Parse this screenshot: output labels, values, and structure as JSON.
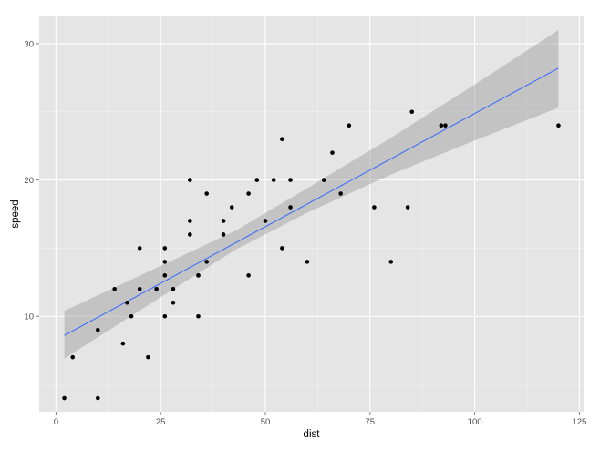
{
  "chart_data": {
    "type": "scatter",
    "xlabel": "dist",
    "ylabel": "speed",
    "xlim": [
      -4,
      126
    ],
    "ylim": [
      3,
      32
    ],
    "x_ticks": [
      0,
      25,
      50,
      75,
      100,
      125
    ],
    "y_ticks": [
      10,
      20,
      30
    ],
    "x_minor_ticks": [
      12.5,
      37.5,
      62.5,
      87.5,
      112.5
    ],
    "y_minor_ticks": [
      5,
      15,
      25
    ],
    "grid": true,
    "legend": "none",
    "colors": {
      "panel": "#e5e5e5",
      "grid": "#ffffff",
      "points": "#000000",
      "fit_line": "#3366ff",
      "confidence_band": "#999999"
    },
    "points": [
      {
        "x": 2,
        "y": 4
      },
      {
        "x": 10,
        "y": 4
      },
      {
        "x": 4,
        "y": 7
      },
      {
        "x": 22,
        "y": 7
      },
      {
        "x": 16,
        "y": 8
      },
      {
        "x": 10,
        "y": 9
      },
      {
        "x": 18,
        "y": 10
      },
      {
        "x": 26,
        "y": 10
      },
      {
        "x": 34,
        "y": 10
      },
      {
        "x": 17,
        "y": 11
      },
      {
        "x": 28,
        "y": 11
      },
      {
        "x": 14,
        "y": 12
      },
      {
        "x": 20,
        "y": 12
      },
      {
        "x": 24,
        "y": 12
      },
      {
        "x": 28,
        "y": 12
      },
      {
        "x": 26,
        "y": 13
      },
      {
        "x": 34,
        "y": 13
      },
      {
        "x": 34,
        "y": 13
      },
      {
        "x": 46,
        "y": 13
      },
      {
        "x": 26,
        "y": 14
      },
      {
        "x": 36,
        "y": 14
      },
      {
        "x": 60,
        "y": 14
      },
      {
        "x": 80,
        "y": 14
      },
      {
        "x": 20,
        "y": 15
      },
      {
        "x": 26,
        "y": 15
      },
      {
        "x": 54,
        "y": 15
      },
      {
        "x": 32,
        "y": 16
      },
      {
        "x": 40,
        "y": 16
      },
      {
        "x": 32,
        "y": 17
      },
      {
        "x": 40,
        "y": 17
      },
      {
        "x": 50,
        "y": 17
      },
      {
        "x": 42,
        "y": 18
      },
      {
        "x": 56,
        "y": 18
      },
      {
        "x": 76,
        "y": 18
      },
      {
        "x": 84,
        "y": 18
      },
      {
        "x": 36,
        "y": 19
      },
      {
        "x": 46,
        "y": 19
      },
      {
        "x": 68,
        "y": 19
      },
      {
        "x": 32,
        "y": 20
      },
      {
        "x": 48,
        "y": 20
      },
      {
        "x": 52,
        "y": 20
      },
      {
        "x": 56,
        "y": 20
      },
      {
        "x": 64,
        "y": 20
      },
      {
        "x": 66,
        "y": 22
      },
      {
        "x": 54,
        "y": 23
      },
      {
        "x": 70,
        "y": 24
      },
      {
        "x": 92,
        "y": 24
      },
      {
        "x": 93,
        "y": 24
      },
      {
        "x": 120,
        "y": 24
      },
      {
        "x": 85,
        "y": 25
      }
    ],
    "fit_line": [
      {
        "x": 2,
        "y": 8.6
      },
      {
        "x": 120,
        "y": 28.2
      }
    ],
    "confidence_band": [
      {
        "x": 2,
        "lower": 6.9,
        "upper": 10.4
      },
      {
        "x": 25,
        "lower": 11.4,
        "upper": 13.7
      },
      {
        "x": 43,
        "lower": 14.9,
        "upper": 16.3
      },
      {
        "x": 60,
        "lower": 17.6,
        "upper": 19.4
      },
      {
        "x": 80,
        "lower": 20.4,
        "upper": 23.1
      },
      {
        "x": 100,
        "lower": 22.9,
        "upper": 27.0
      },
      {
        "x": 120,
        "lower": 25.3,
        "upper": 31.0
      }
    ]
  }
}
